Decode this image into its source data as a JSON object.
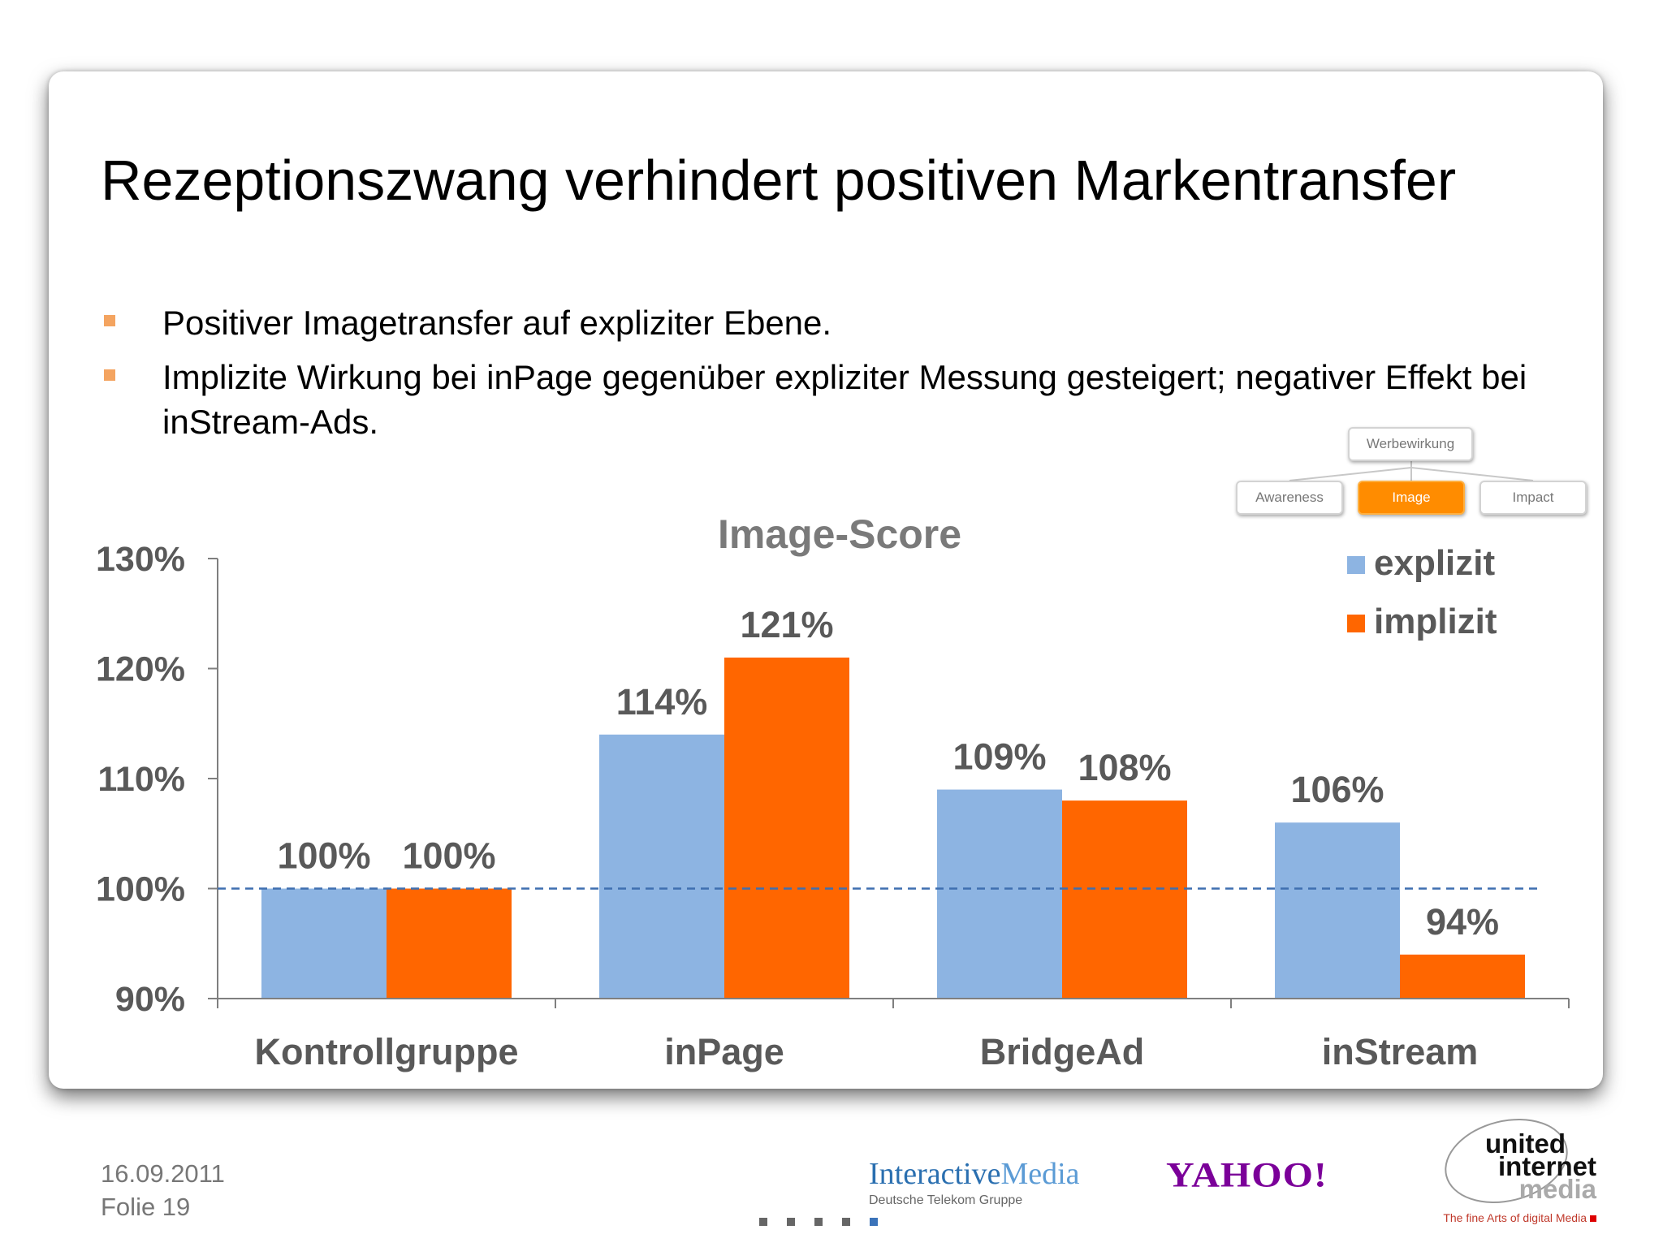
{
  "slide": {
    "title": "Rezeptionszwang verhindert positiven Markentransfer",
    "bullets": [
      "Positiver Imagetransfer auf expliziter Ebene.",
      "Implizite Wirkung bei inPage gegenüber expliziter Messung gesteigert; negativer Effekt bei inStream-Ads."
    ]
  },
  "hierarchy": {
    "root": "Werbewirkung",
    "children": [
      "Awareness",
      "Image",
      "Impact"
    ],
    "active": "Image"
  },
  "chart_data": {
    "type": "bar",
    "title": "Image-Score",
    "categories": [
      "Kontrollgruppe",
      "inPage",
      "BridgeAd",
      "inStream"
    ],
    "series": [
      {
        "name": "explizit",
        "values": [
          100,
          114,
          109,
          106
        ],
        "color": "#8db4e2"
      },
      {
        "name": "implizit",
        "values": [
          100,
          121,
          108,
          94
        ],
        "color": "#ff6600"
      }
    ],
    "data_labels": [
      [
        "100%",
        "114%",
        "109%",
        "106%"
      ],
      [
        "100%",
        "121%",
        "108%",
        "94%"
      ]
    ],
    "ylim": [
      90,
      130
    ],
    "yticks": [
      90,
      100,
      110,
      120,
      130
    ],
    "ytick_labels": [
      "90%",
      "100%",
      "110%",
      "120%",
      "130%"
    ],
    "reference_line": 100,
    "legend_position": "top-right",
    "colors": {
      "axis": "#7f7f7f",
      "labels": "#595959",
      "reference_line": "#3f6fb0"
    }
  },
  "footer": {
    "date": "16.09.2011",
    "slide_number": "Folie 19",
    "logos": {
      "interactive_media_main": "Interactive",
      "interactive_media_main2": "Media",
      "interactive_media_sub": "Deutsche Telekom Gruppe",
      "yahoo": "YAHOO!",
      "uim_line1": "united",
      "uim_line2": "internet",
      "uim_line3": "media",
      "uim_tagline": "The fine Arts of digital Media"
    },
    "nav_dots": 5,
    "current_dot": 5
  }
}
